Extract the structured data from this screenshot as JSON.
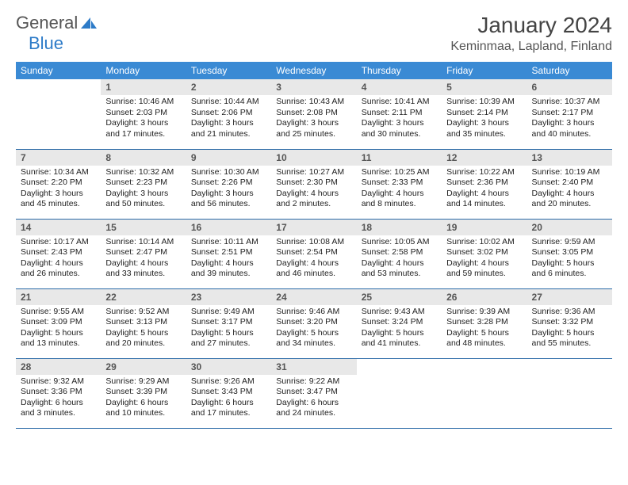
{
  "logo": {
    "text1": "General",
    "text2": "Blue"
  },
  "title": "January 2024",
  "location": "Keminmaa, Lapland, Finland",
  "colors": {
    "header_bg": "#3a8ad4",
    "header_text": "#ffffff",
    "daynum_bg": "#e8e8e8",
    "border": "#2d6ca8",
    "logo_blue": "#2d7bc8"
  },
  "weekdays": [
    "Sunday",
    "Monday",
    "Tuesday",
    "Wednesday",
    "Thursday",
    "Friday",
    "Saturday"
  ],
  "weeks": [
    [
      null,
      {
        "n": "1",
        "sr": "Sunrise: 10:46 AM",
        "ss": "Sunset: 2:03 PM",
        "d1": "Daylight: 3 hours",
        "d2": "and 17 minutes."
      },
      {
        "n": "2",
        "sr": "Sunrise: 10:44 AM",
        "ss": "Sunset: 2:06 PM",
        "d1": "Daylight: 3 hours",
        "d2": "and 21 minutes."
      },
      {
        "n": "3",
        "sr": "Sunrise: 10:43 AM",
        "ss": "Sunset: 2:08 PM",
        "d1": "Daylight: 3 hours",
        "d2": "and 25 minutes."
      },
      {
        "n": "4",
        "sr": "Sunrise: 10:41 AM",
        "ss": "Sunset: 2:11 PM",
        "d1": "Daylight: 3 hours",
        "d2": "and 30 minutes."
      },
      {
        "n": "5",
        "sr": "Sunrise: 10:39 AM",
        "ss": "Sunset: 2:14 PM",
        "d1": "Daylight: 3 hours",
        "d2": "and 35 minutes."
      },
      {
        "n": "6",
        "sr": "Sunrise: 10:37 AM",
        "ss": "Sunset: 2:17 PM",
        "d1": "Daylight: 3 hours",
        "d2": "and 40 minutes."
      }
    ],
    [
      {
        "n": "7",
        "sr": "Sunrise: 10:34 AM",
        "ss": "Sunset: 2:20 PM",
        "d1": "Daylight: 3 hours",
        "d2": "and 45 minutes."
      },
      {
        "n": "8",
        "sr": "Sunrise: 10:32 AM",
        "ss": "Sunset: 2:23 PM",
        "d1": "Daylight: 3 hours",
        "d2": "and 50 minutes."
      },
      {
        "n": "9",
        "sr": "Sunrise: 10:30 AM",
        "ss": "Sunset: 2:26 PM",
        "d1": "Daylight: 3 hours",
        "d2": "and 56 minutes."
      },
      {
        "n": "10",
        "sr": "Sunrise: 10:27 AM",
        "ss": "Sunset: 2:30 PM",
        "d1": "Daylight: 4 hours",
        "d2": "and 2 minutes."
      },
      {
        "n": "11",
        "sr": "Sunrise: 10:25 AM",
        "ss": "Sunset: 2:33 PM",
        "d1": "Daylight: 4 hours",
        "d2": "and 8 minutes."
      },
      {
        "n": "12",
        "sr": "Sunrise: 10:22 AM",
        "ss": "Sunset: 2:36 PM",
        "d1": "Daylight: 4 hours",
        "d2": "and 14 minutes."
      },
      {
        "n": "13",
        "sr": "Sunrise: 10:19 AM",
        "ss": "Sunset: 2:40 PM",
        "d1": "Daylight: 4 hours",
        "d2": "and 20 minutes."
      }
    ],
    [
      {
        "n": "14",
        "sr": "Sunrise: 10:17 AM",
        "ss": "Sunset: 2:43 PM",
        "d1": "Daylight: 4 hours",
        "d2": "and 26 minutes."
      },
      {
        "n": "15",
        "sr": "Sunrise: 10:14 AM",
        "ss": "Sunset: 2:47 PM",
        "d1": "Daylight: 4 hours",
        "d2": "and 33 minutes."
      },
      {
        "n": "16",
        "sr": "Sunrise: 10:11 AM",
        "ss": "Sunset: 2:51 PM",
        "d1": "Daylight: 4 hours",
        "d2": "and 39 minutes."
      },
      {
        "n": "17",
        "sr": "Sunrise: 10:08 AM",
        "ss": "Sunset: 2:54 PM",
        "d1": "Daylight: 4 hours",
        "d2": "and 46 minutes."
      },
      {
        "n": "18",
        "sr": "Sunrise: 10:05 AM",
        "ss": "Sunset: 2:58 PM",
        "d1": "Daylight: 4 hours",
        "d2": "and 53 minutes."
      },
      {
        "n": "19",
        "sr": "Sunrise: 10:02 AM",
        "ss": "Sunset: 3:02 PM",
        "d1": "Daylight: 4 hours",
        "d2": "and 59 minutes."
      },
      {
        "n": "20",
        "sr": "Sunrise: 9:59 AM",
        "ss": "Sunset: 3:05 PM",
        "d1": "Daylight: 5 hours",
        "d2": "and 6 minutes."
      }
    ],
    [
      {
        "n": "21",
        "sr": "Sunrise: 9:55 AM",
        "ss": "Sunset: 3:09 PM",
        "d1": "Daylight: 5 hours",
        "d2": "and 13 minutes."
      },
      {
        "n": "22",
        "sr": "Sunrise: 9:52 AM",
        "ss": "Sunset: 3:13 PM",
        "d1": "Daylight: 5 hours",
        "d2": "and 20 minutes."
      },
      {
        "n": "23",
        "sr": "Sunrise: 9:49 AM",
        "ss": "Sunset: 3:17 PM",
        "d1": "Daylight: 5 hours",
        "d2": "and 27 minutes."
      },
      {
        "n": "24",
        "sr": "Sunrise: 9:46 AM",
        "ss": "Sunset: 3:20 PM",
        "d1": "Daylight: 5 hours",
        "d2": "and 34 minutes."
      },
      {
        "n": "25",
        "sr": "Sunrise: 9:43 AM",
        "ss": "Sunset: 3:24 PM",
        "d1": "Daylight: 5 hours",
        "d2": "and 41 minutes."
      },
      {
        "n": "26",
        "sr": "Sunrise: 9:39 AM",
        "ss": "Sunset: 3:28 PM",
        "d1": "Daylight: 5 hours",
        "d2": "and 48 minutes."
      },
      {
        "n": "27",
        "sr": "Sunrise: 9:36 AM",
        "ss": "Sunset: 3:32 PM",
        "d1": "Daylight: 5 hours",
        "d2": "and 55 minutes."
      }
    ],
    [
      {
        "n": "28",
        "sr": "Sunrise: 9:32 AM",
        "ss": "Sunset: 3:36 PM",
        "d1": "Daylight: 6 hours",
        "d2": "and 3 minutes."
      },
      {
        "n": "29",
        "sr": "Sunrise: 9:29 AM",
        "ss": "Sunset: 3:39 PM",
        "d1": "Daylight: 6 hours",
        "d2": "and 10 minutes."
      },
      {
        "n": "30",
        "sr": "Sunrise: 9:26 AM",
        "ss": "Sunset: 3:43 PM",
        "d1": "Daylight: 6 hours",
        "d2": "and 17 minutes."
      },
      {
        "n": "31",
        "sr": "Sunrise: 9:22 AM",
        "ss": "Sunset: 3:47 PM",
        "d1": "Daylight: 6 hours",
        "d2": "and 24 minutes."
      },
      null,
      null,
      null
    ]
  ]
}
